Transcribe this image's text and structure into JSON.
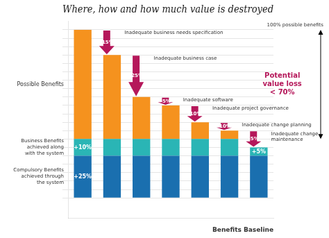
{
  "chart_data": {
    "type": "bar",
    "title": "Where, how and how much value is destroyed",
    "stacked": true,
    "categories": [
      null,
      null,
      null,
      null,
      null,
      null,
      null
    ],
    "series": [
      {
        "name": "Compulsory Benefits\nachieved through\nthe system",
        "color": "#1a6faf",
        "values": [
          25,
          25,
          25,
          25,
          25,
          25,
          25
        ],
        "value_labels": [
          "+25%",
          null,
          null,
          null,
          null,
          null,
          null
        ]
      },
      {
        "name": "Business Benefits\nachieved along\nwith the system",
        "color": "#2ab5b5",
        "values": [
          10,
          10,
          10,
          10,
          10,
          10,
          5
        ],
        "value_labels": [
          "+10%",
          null,
          null,
          null,
          null,
          null,
          "+5%"
        ]
      },
      {
        "name": "Possible Benefits",
        "color": "#f5921e",
        "values": [
          65,
          50,
          25,
          20,
          10,
          5,
          0
        ]
      }
    ],
    "ylim": [
      -12,
      105
    ],
    "yticks": [
      0,
      5,
      10,
      15,
      20,
      25,
      30,
      35,
      40,
      45,
      50,
      55,
      60,
      65,
      70,
      75,
      80,
      85,
      90,
      95,
      100
    ],
    "grid": true,
    "tick_labels": false,
    "xlabel": "Benefits Baseline",
    "annotations": [
      {
        "label": "-15%",
        "text": "Inadequate business needs specification",
        "color": "#b5175a"
      },
      {
        "label": "-25%",
        "text": "Inadequate business case",
        "color": "#b5175a"
      },
      {
        "label": "-5%",
        "text": "Inadequate software",
        "color": "#b5175a"
      },
      {
        "label": "-10%",
        "text": "Inadequate project governance",
        "color": "#b5175a"
      },
      {
        "label": "-10%",
        "text": "Inadequate change planning",
        "color": "#b5175a"
      },
      {
        "label": "-5%",
        "text": "Inadequate change\nmaintenance",
        "color": "#b5175a"
      }
    ],
    "right_annotation": {
      "text": "Potential\nvalue loss\n< 70%",
      "color": "#b5175a"
    },
    "right_label": "100% possible benefits"
  }
}
